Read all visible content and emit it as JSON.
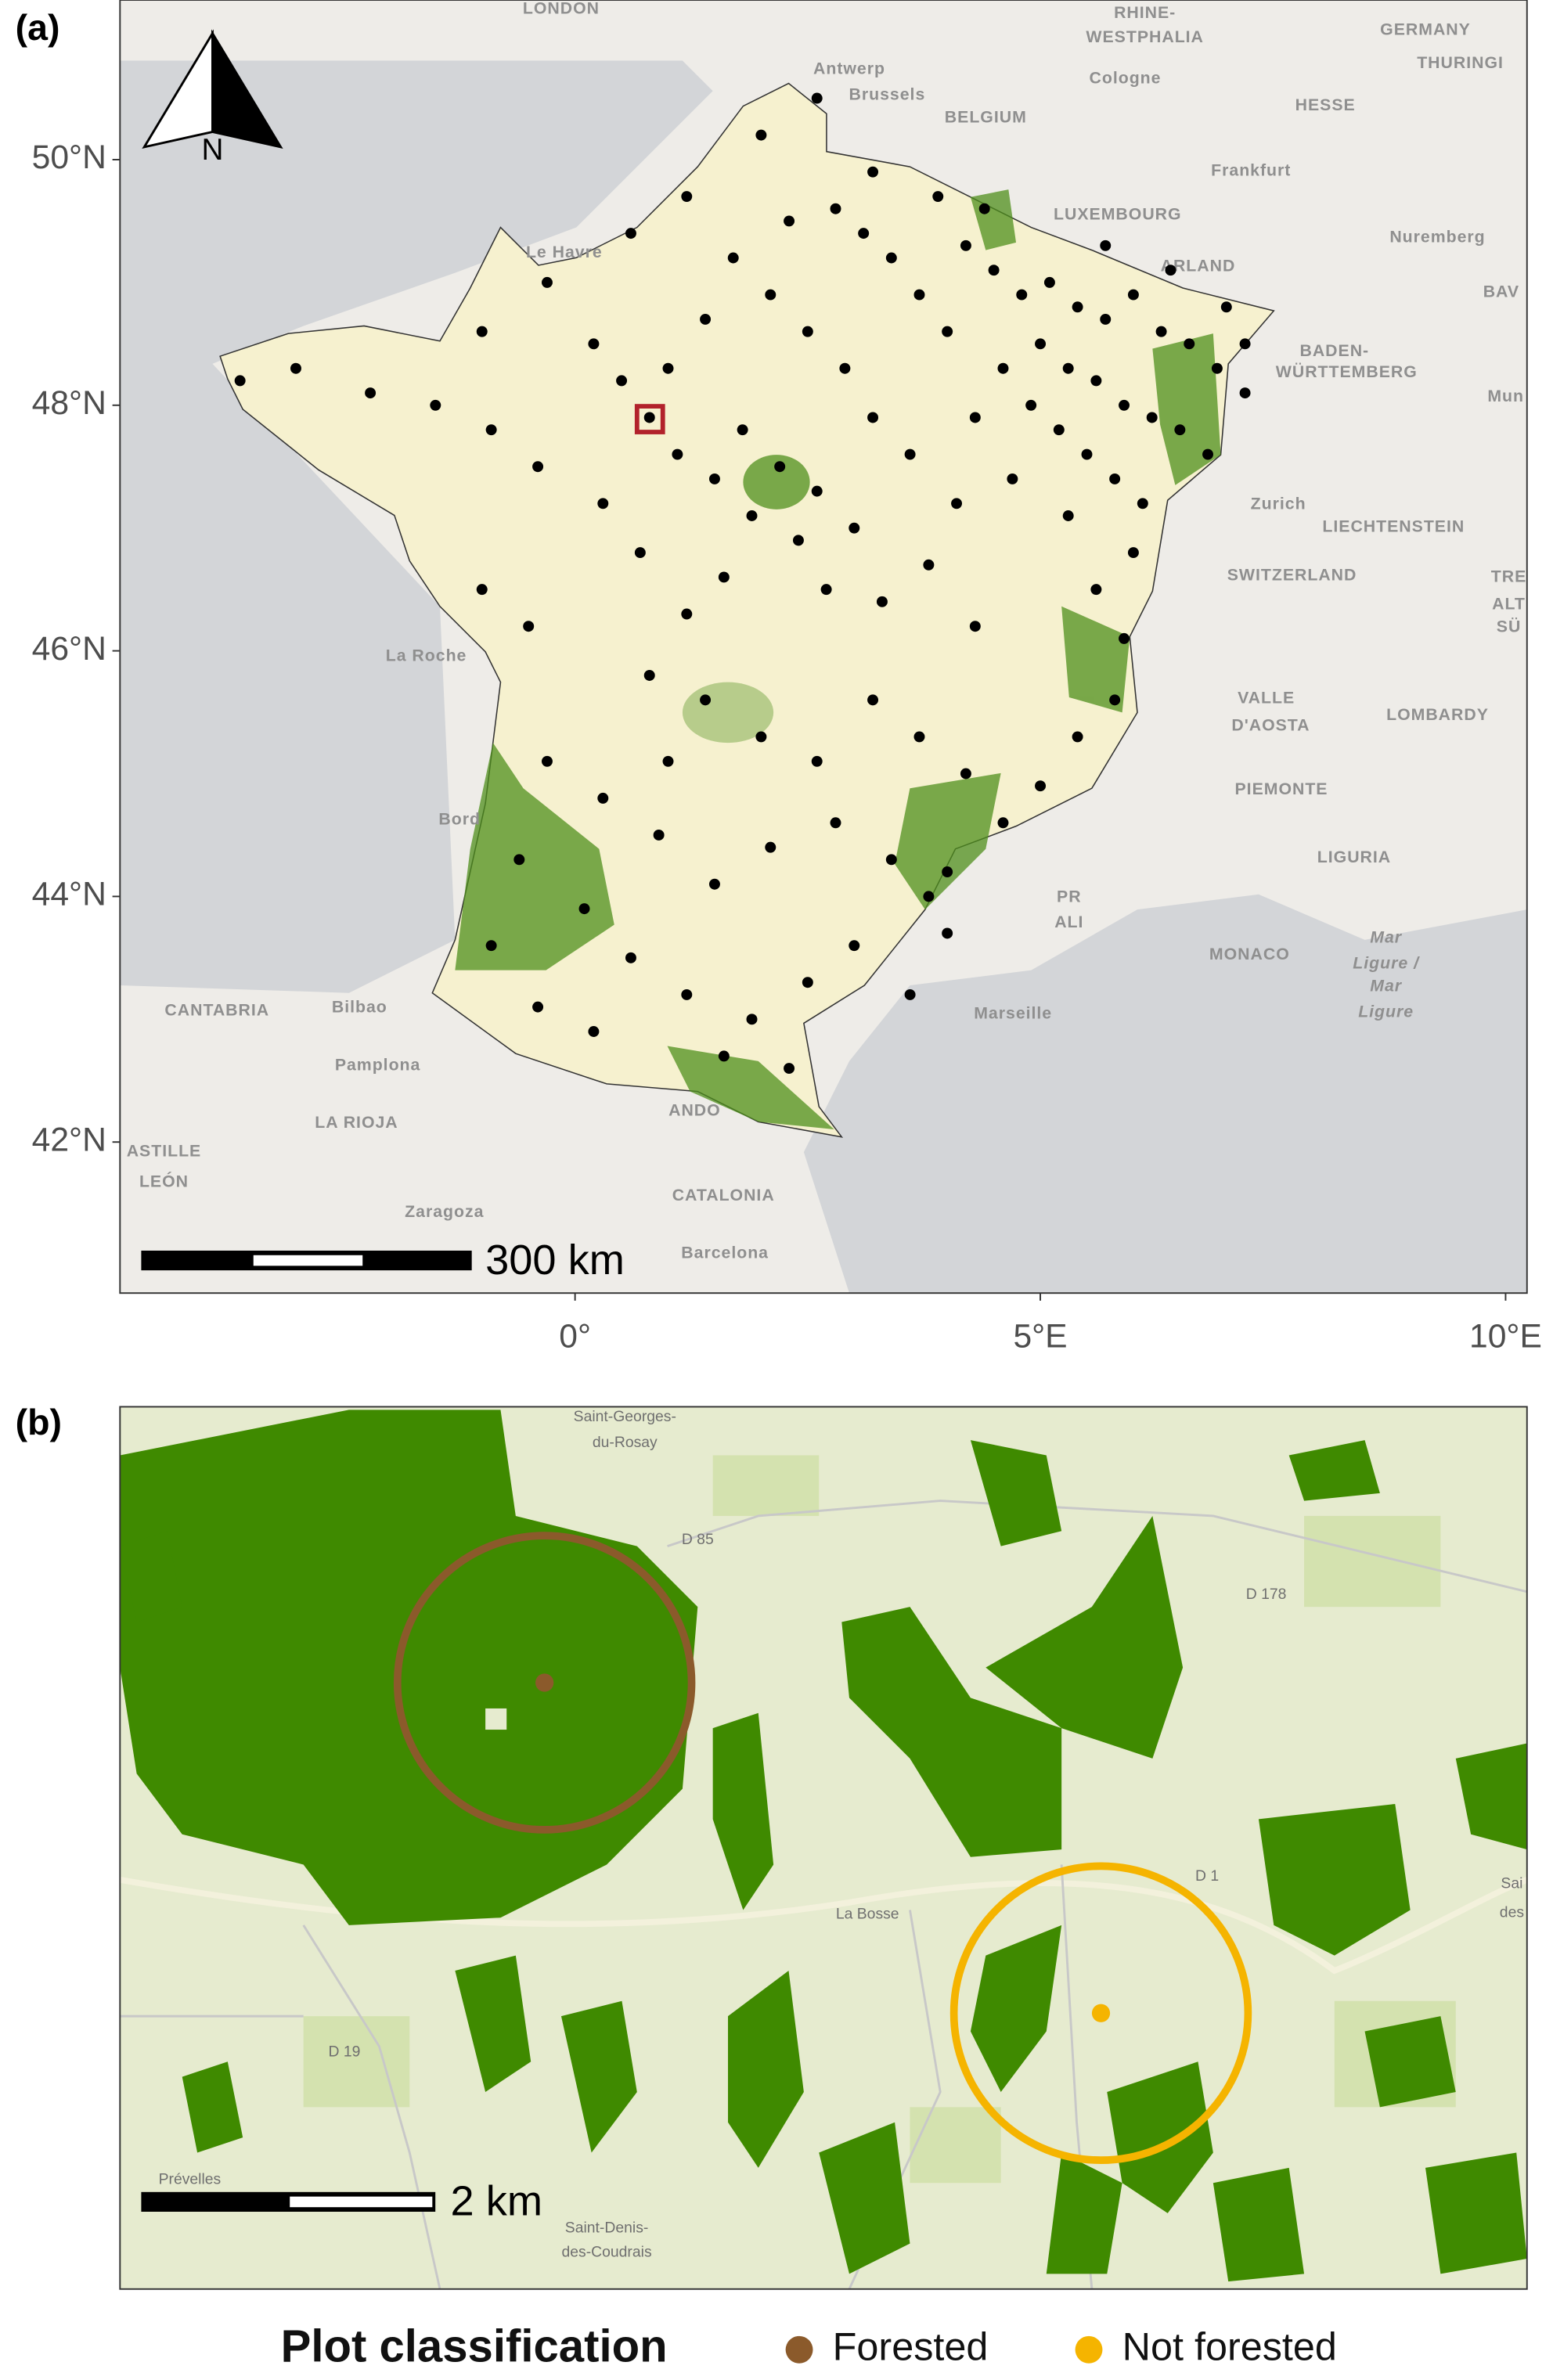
{
  "panel_a": {
    "label": "(a)",
    "north_label": "N",
    "scale_label": "300 km",
    "map": {
      "type": "scatter",
      "xlim": [
        -4.89,
        10.23
      ],
      "ylim": [
        40.77,
        51.3
      ],
      "xticks": [
        {
          "value": 0,
          "label": "0°"
        },
        {
          "value": 5,
          "label": "5°E"
        },
        {
          "value": 10,
          "label": "10°E"
        }
      ],
      "yticks": [
        {
          "value": 42,
          "label": "42°N"
        },
        {
          "value": 44,
          "label": "44°N"
        },
        {
          "value": 46,
          "label": "46°N"
        },
        {
          "value": 48,
          "label": "48°N"
        },
        {
          "value": 50,
          "label": "50°N"
        }
      ],
      "color": "#000000",
      "x": [
        4.2,
        4.5,
        4.8,
        5.1,
        5.4,
        5.7,
        6.0,
        6.3,
        6.6,
        6.9,
        7.2,
        5.0,
        5.3,
        5.6,
        5.9,
        6.2,
        6.5,
        4.6,
        4.9,
        5.2,
        5.5,
        5.8,
        6.1,
        4.3,
        4.0,
        3.7,
        3.4,
        3.1,
        2.8,
        5.7,
        6.4,
        7.0,
        7.2,
        6.8,
        6.0,
        5.6,
        5.3,
        4.7,
        4.1,
        3.6,
        3.2,
        2.9,
        2.5,
        2.1,
        1.7,
        2.3,
        1.4,
        1.8,
        2.2,
        2.6,
        3.0,
        2.4,
        1.9,
        1.5,
        1.1,
        0.8,
        0.5,
        0.2,
        1.0,
        2.7,
        3.3,
        3.8,
        4.3,
        1.6,
        1.2,
        0.7,
        0.3,
        -0.4,
        -0.9,
        -1.5,
        -2.2,
        -3.0,
        -3.6,
        -1.0,
        -0.3,
        0.6,
        1.2,
        3.9,
        4.4,
        2.0,
        2.6,
        3.2,
        0.8,
        1.4,
        2.0,
        2.6,
        3.2,
        3.7,
        4.2,
        4.6,
        5.0,
        5.4,
        5.8,
        5.9,
        4.0,
        3.8,
        3.4,
        2.8,
        2.1,
        1.5,
        0.9,
        0.3,
        -0.3,
        -0.6,
        0.1,
        0.6,
        1.2,
        1.9,
        2.5,
        3.0,
        -0.4,
        0.2,
        1.6,
        2.3,
        -0.9,
        -0.5,
        -1.0,
        4.0,
        3.6,
        1.0
      ],
      "y": [
        49.3,
        49.1,
        48.9,
        49.0,
        48.8,
        48.7,
        48.9,
        48.6,
        48.5,
        48.3,
        48.1,
        48.5,
        48.3,
        48.2,
        48.0,
        47.9,
        47.8,
        48.3,
        48.0,
        47.8,
        47.6,
        47.4,
        47.2,
        47.9,
        48.6,
        48.9,
        49.2,
        49.4,
        49.6,
        49.3,
        49.1,
        48.8,
        48.5,
        47.6,
        46.8,
        46.5,
        47.1,
        47.4,
        47.2,
        47.6,
        47.9,
        48.3,
        48.6,
        48.9,
        49.2,
        49.5,
        48.7,
        47.8,
        47.5,
        47.3,
        47.0,
        46.9,
        47.1,
        47.4,
        47.6,
        47.9,
        48.2,
        48.5,
        48.3,
        46.5,
        46.4,
        46.7,
        46.2,
        46.6,
        46.3,
        46.8,
        47.2,
        47.5,
        47.8,
        48.0,
        48.1,
        48.3,
        48.2,
        48.6,
        49.0,
        49.4,
        49.7,
        49.7,
        49.6,
        50.2,
        50.5,
        49.9,
        45.8,
        45.6,
        45.3,
        45.1,
        45.6,
        45.3,
        45.0,
        44.6,
        44.9,
        45.3,
        45.6,
        46.1,
        44.2,
        44.0,
        44.3,
        44.6,
        44.4,
        44.1,
        44.5,
        44.8,
        45.1,
        44.3,
        43.9,
        43.5,
        43.2,
        43.0,
        43.3,
        43.6,
        43.1,
        42.9,
        42.7,
        42.6,
        43.6,
        46.2,
        46.5,
        43.7,
        43.2,
        45.1
      ]
    },
    "places": [
      "LONDON",
      "Antwerp",
      "Brussels",
      "Cologne",
      "RHINE-",
      "WESTPHALIA",
      "GERMANY",
      "THURINGI",
      "BELGIUM",
      "HESSE",
      "Frankfurt",
      "LUXEMBOURG",
      "Nuremberg",
      "ARLAND",
      "BAV",
      "BADEN-",
      "WÜRTTEMBERG",
      "Mun",
      "Zurich",
      "LIECHTENSTEIN",
      "SWITZERLAND",
      "VALLE",
      "D'AOSTA",
      "LOMBARDY",
      "PIEMONTE",
      "LIGURIA",
      "MONACO",
      "Mar",
      "Ligure /",
      "Mar",
      "Ligure",
      "PR",
      "ALI",
      "Marseille",
      "Le Havre",
      "La Roche",
      "Bord",
      "CANTABRIA",
      "Bilbao",
      "Pamplona",
      "LA RIOJA",
      "ASTILLE",
      "LEÓN",
      "Zaragoza",
      "CATALONIA",
      "Barcelona",
      "ANDO",
      "TRE",
      "ALT",
      "SÜ"
    ]
  },
  "panel_b": {
    "label": "(b)",
    "scale_label": "2 km",
    "places": [
      "Saint-Georges-",
      "du-Rosay",
      "D 85",
      "D 178",
      "La Bosse",
      "D 19",
      "Prévelles",
      "Saint-Denis-",
      "des-Coudrais",
      "D 1",
      "Sai",
      "des"
    ]
  },
  "legend": {
    "title": "Plot classification",
    "items": [
      {
        "label": "Forested",
        "color": "#8b5a2b"
      },
      {
        "label": "Not forested",
        "color": "#f5b400"
      }
    ]
  }
}
